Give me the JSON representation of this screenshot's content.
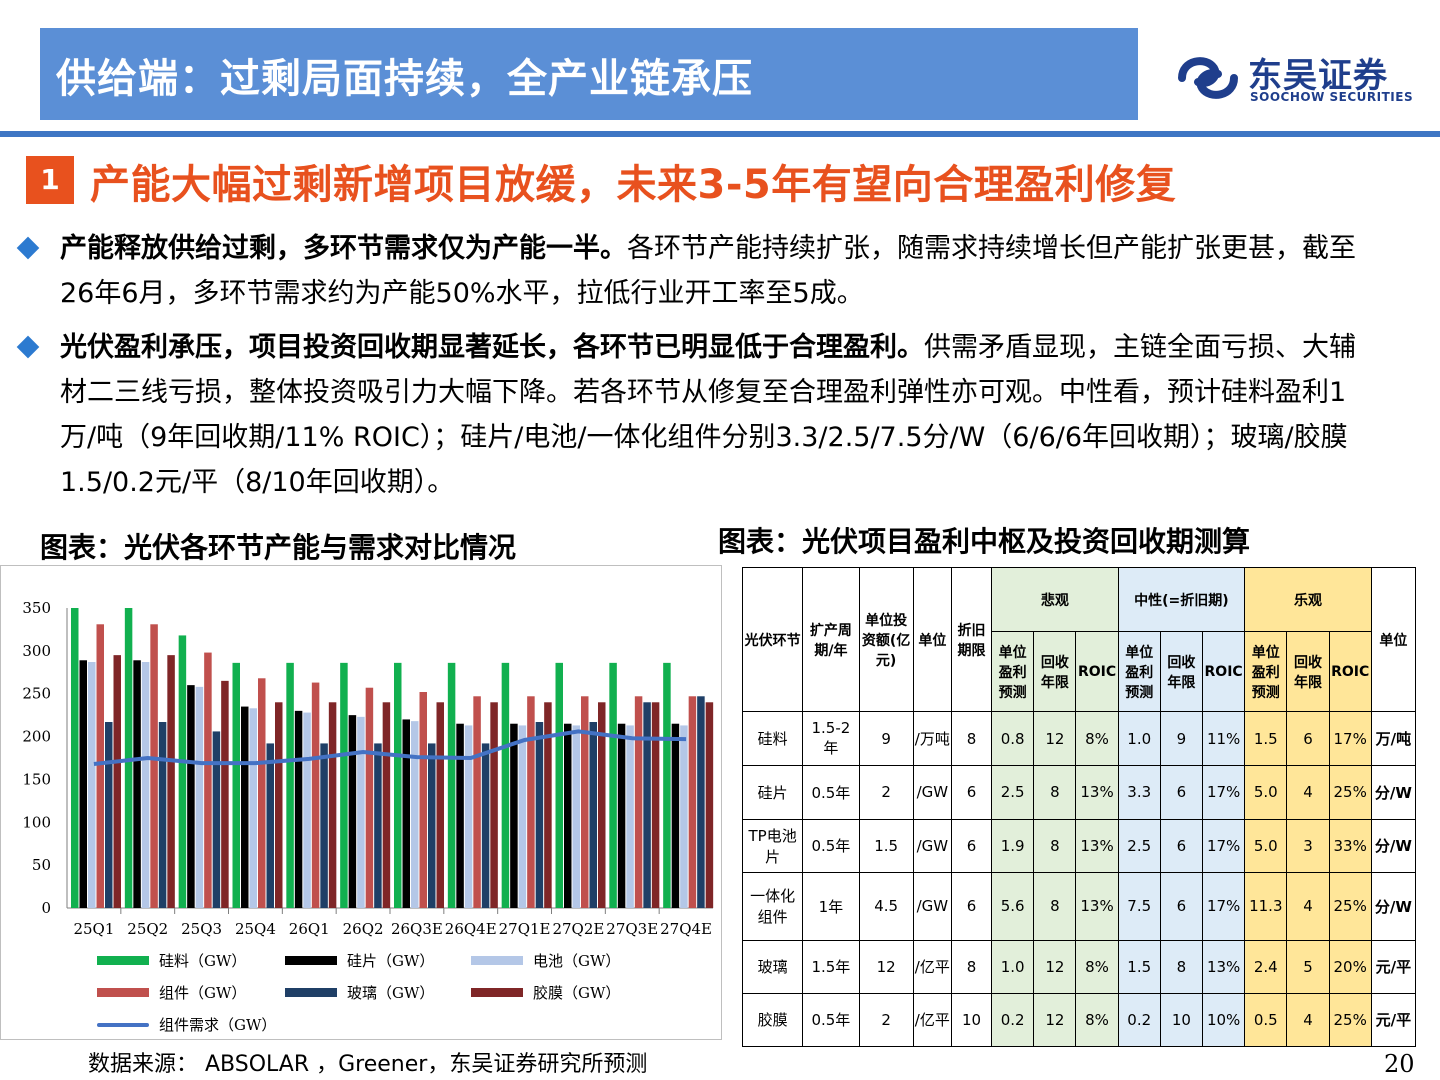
{
  "header": {
    "title": "供给端：过剩局面持续，全产业链承压",
    "logo_cn": "东吴证券",
    "logo_en": "SOOCHOW SECURITIES"
  },
  "section": {
    "number": "1",
    "title": "产能大幅过剩新增项目放缓，未来3-5年有望向合理盈利修复"
  },
  "bullets": [
    {
      "bold": "产能释放供给过剩，多环节需求仅为产能一半。",
      "text": "各环节产能持续扩张，随需求持续增长但产能扩张更甚，截至26年6月，多环节需求约为产能50%水平，拉低行业开工率至5成。"
    },
    {
      "bold": "光伏盈利承压，项目投资回收期显著延长，各环节已明显低于合理盈利。",
      "text": "供需矛盾显现，主链全面亏损、大辅材二三线亏损，整体投资吸引力大幅下降。若各环节从修复至合理盈利弹性亦可观。中性看，预计硅料盈利1万/吨（9年回收期/11% ROIC）；硅片/电池/一体化组件分别3.3/2.5/7.5分/W（6/6/6年回收期）；玻璃/胶膜1.5/0.2元/平（8/10年回收期）。"
    }
  ],
  "figure_left_title": "图表：光伏各环节产能与需求对比情况",
  "figure_right_title": "图表：光伏项目盈利中枢及投资回收期测算",
  "chart_data": {
    "type": "bar",
    "categories": [
      "25Q1",
      "25Q2",
      "25Q3",
      "25Q4",
      "26Q1",
      "26Q2",
      "26Q3E",
      "26Q4E",
      "27Q1E",
      "27Q2E",
      "27Q3E",
      "27Q4E"
    ],
    "ylim": [
      0,
      350
    ],
    "yticks": [
      0,
      50,
      100,
      150,
      200,
      250,
      300,
      350
    ],
    "series": [
      {
        "name": "硅料（GW）",
        "color": "#11b04f",
        "values": [
          350,
          350,
          318,
          286,
          286,
          286,
          286,
          286,
          286,
          286,
          286,
          286
        ]
      },
      {
        "name": "硅片（GW）",
        "color": "#000000",
        "values": [
          289,
          289,
          260,
          235,
          230,
          225,
          220,
          215,
          215,
          215,
          215,
          215
        ]
      },
      {
        "name": "电池（GW）",
        "color": "#b4c7e7",
        "values": [
          287,
          287,
          258,
          233,
          228,
          223,
          218,
          213,
          213,
          213,
          213,
          213
        ]
      },
      {
        "name": "组件（GW）",
        "color": "#c0504d",
        "values": [
          331,
          331,
          298,
          268,
          263,
          257,
          252,
          247,
          247,
          247,
          247,
          247
        ]
      },
      {
        "name": "玻璃（GW）",
        "color": "#1f3f66",
        "values": [
          217,
          217,
          206,
          192,
          192,
          192,
          192,
          192,
          217,
          217,
          240,
          247
        ]
      },
      {
        "name": "胶膜（GW）",
        "color": "#7f2627",
        "values": [
          295,
          295,
          265,
          240,
          240,
          240,
          240,
          240,
          240,
          240,
          240,
          240
        ]
      },
      {
        "name": "组件需求（GW）",
        "type": "line",
        "color": "#4472c4",
        "values": [
          168,
          175,
          169,
          169,
          174,
          182,
          176,
          175,
          196,
          206,
          198,
          197
        ]
      }
    ],
    "legend_position": "bottom"
  },
  "table": {
    "headers": {
      "segment": "光伏环节",
      "period": "扩产周期/年",
      "invest": "单位投资额(亿元)",
      "unit": "单位",
      "depr": "折旧期限",
      "pessimistic": "悲观",
      "neutral": "中性(=折旧期)",
      "optimistic": "乐观",
      "profit": "单位盈利预测",
      "payback": "回收年限",
      "roic": "ROIC",
      "unit2": "单位"
    },
    "rows": [
      {
        "seg": "硅料",
        "period": "1.5-2年",
        "invest": "9",
        "unit": "/万吨",
        "depr": "8",
        "p1": "0.8",
        "p2": "12",
        "p3": "8%",
        "n1": "1.0",
        "n2": "9",
        "n3": "11%",
        "o1": "1.5",
        "o2": "6",
        "o3": "17%",
        "u": "万/吨"
      },
      {
        "seg": "硅片",
        "period": "0.5年",
        "invest": "2",
        "unit": "/GW",
        "depr": "6",
        "p1": "2.5",
        "p2": "8",
        "p3": "13%",
        "n1": "3.3",
        "n2": "6",
        "n3": "17%",
        "o1": "5.0",
        "o2": "4",
        "o3": "25%",
        "u": "分/W"
      },
      {
        "seg": "TP电池片",
        "period": "0.5年",
        "invest": "1.5",
        "unit": "/GW",
        "depr": "6",
        "p1": "1.9",
        "p2": "8",
        "p3": "13%",
        "n1": "2.5",
        "n2": "6",
        "n3": "17%",
        "o1": "5.0",
        "o2": "3",
        "o3": "33%",
        "u": "分/W"
      },
      {
        "seg": "一体化组件",
        "period": "1年",
        "invest": "4.5",
        "unit": "/GW",
        "depr": "6",
        "p1": "5.6",
        "p2": "8",
        "p3": "13%",
        "n1": "7.5",
        "n2": "6",
        "n3": "17%",
        "o1": "11.3",
        "o2": "4",
        "o3": "25%",
        "u": "分/W"
      },
      {
        "seg": "玻璃",
        "period": "1.5年",
        "invest": "12",
        "unit": "/亿平",
        "depr": "8",
        "p1": "1.0",
        "p2": "12",
        "p3": "8%",
        "n1": "1.5",
        "n2": "8",
        "n3": "13%",
        "o1": "2.4",
        "o2": "5",
        "o3": "20%",
        "u": "元/平"
      },
      {
        "seg": "胶膜",
        "period": "0.5年",
        "invest": "2",
        "unit": "/亿平",
        "depr": "10",
        "p1": "0.2",
        "p2": "12",
        "p3": "8%",
        "n1": "0.2",
        "n2": "10",
        "n3": "10%",
        "o1": "0.5",
        "o2": "4",
        "o3": "25%",
        "u": "元/平"
      }
    ]
  },
  "source": "数据来源： ABSOLAR ，Greener，东吴证券研究所预测",
  "page_number": "20"
}
